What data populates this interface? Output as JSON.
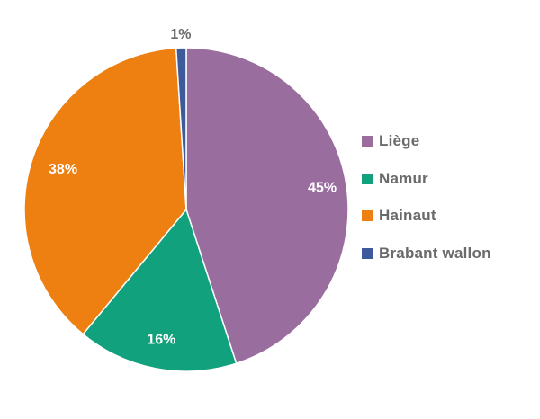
{
  "chart_data": {
    "type": "pie",
    "title": "",
    "slices": [
      {
        "name": "Liège",
        "value": 45,
        "label": "45%",
        "color": "#9a6d9f"
      },
      {
        "name": "Namur",
        "value": 16,
        "label": "16%",
        "color": "#11a17c"
      },
      {
        "name": "Hainaut",
        "value": 38,
        "label": "38%",
        "color": "#ee8011"
      },
      {
        "name": "Brabant wallon",
        "value": 1,
        "label": "1%",
        "color": "#3f5a9a"
      }
    ],
    "start": "12 o'clock",
    "direction": "clockwise",
    "legend_position": "right",
    "label_colors": {
      "inside": "#ffffff",
      "outside": "#6a6a6a"
    }
  }
}
